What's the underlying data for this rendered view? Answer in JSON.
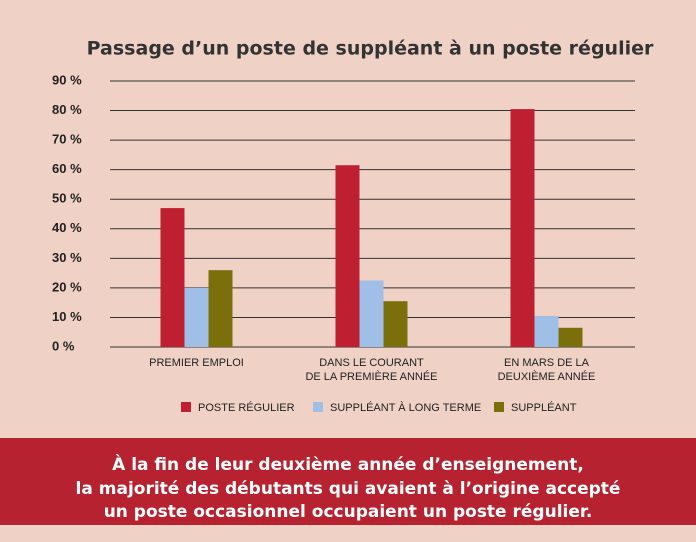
{
  "chart_data": {
    "type": "bar",
    "title": "Passage d’un poste de suppléant à un poste régulier",
    "categories": [
      "PREMIER EMPLOI",
      "DANS LE COURANT\nDE LA PREMIÈRE ANNÉE",
      "EN MARS DE LA\nDEUXIÈME ANNÉE"
    ],
    "series": [
      {
        "name": "POSTE RÉGULIER",
        "color": "#be2032",
        "values": [
          47,
          61.5,
          80.5
        ]
      },
      {
        "name": "SUPPLÉANT À LONG TERME",
        "color": "#9fbfe6",
        "values": [
          20,
          22.5,
          10.5
        ]
      },
      {
        "name": "SUPPLÉANT",
        "color": "#7b6f0c",
        "values": [
          26,
          15.5,
          6.5
        ]
      }
    ],
    "ylim": [
      0,
      90
    ],
    "yticks": [
      {
        "value": 0,
        "label": "0 %"
      },
      {
        "value": 10,
        "label": "10 %"
      },
      {
        "value": 20,
        "label": "20 %"
      },
      {
        "value": 30,
        "label": "30 %"
      },
      {
        "value": 40,
        "label": "40 %"
      },
      {
        "value": 50,
        "label": "50 %"
      },
      {
        "value": 60,
        "label": "60 %"
      },
      {
        "value": 70,
        "label": "70 %"
      },
      {
        "value": 80,
        "label": "80 %"
      },
      {
        "value": 90,
        "label": "90 %"
      }
    ],
    "grid": true,
    "legend": "bottom"
  },
  "banner": {
    "lines": [
      "À la fin de leur deuxième année d’enseignement,",
      "la majorité des débutants qui avaient à l’origine accepté",
      "un poste occasionnel occupaient un poste régulier."
    ]
  }
}
